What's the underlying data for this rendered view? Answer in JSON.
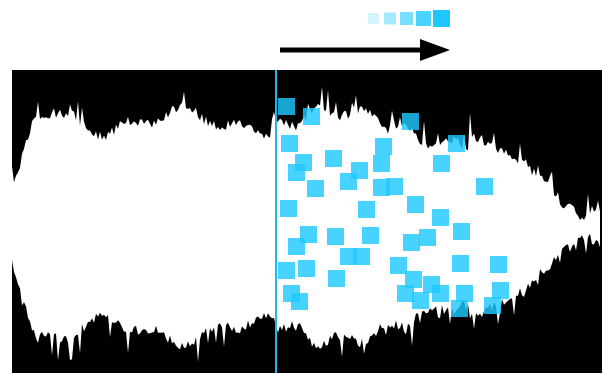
{
  "colors": {
    "background": "#ffffff",
    "panel": "#000000",
    "waveform": "#ffffff",
    "accent": "#1ec8ff",
    "playhead": "#1fb8e8",
    "arrow": "#000000"
  },
  "legend": {
    "squares": [
      {
        "opacity": 0.2
      },
      {
        "opacity": 0.4
      },
      {
        "opacity": 0.6
      },
      {
        "opacity": 0.8
      },
      {
        "opacity": 1.0
      }
    ]
  },
  "icons": {
    "arrow": "right-arrow-icon",
    "playhead": "playhead-line"
  }
}
